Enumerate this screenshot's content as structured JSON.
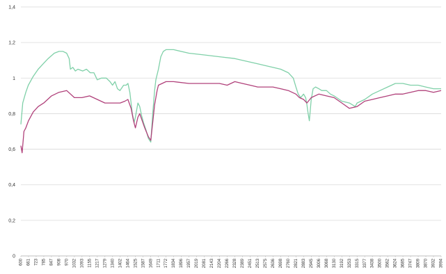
{
  "chart_data": {
    "type": "line",
    "title": "",
    "xlabel": "",
    "ylabel": "",
    "ylim": [
      0,
      1.4
    ],
    "yticks": [
      "0",
      "0,2",
      "0,4",
      "0,6",
      "0,8",
      "1",
      "1,2",
      "1,4"
    ],
    "grid": true,
    "legend": "none",
    "x_categories": [
      "600",
      "661",
      "723",
      "785",
      "847",
      "908",
      "970",
      "1032",
      "1093",
      "1155",
      "1217",
      "1279",
      "1340",
      "1402",
      "1464",
      "1525",
      "1587",
      "1649",
      "1711",
      "1772",
      "1834",
      "1896",
      "1957",
      "2019",
      "2081",
      "2143",
      "2204",
      "2266",
      "2328",
      "2389",
      "2451",
      "2513",
      "2575",
      "2636",
      "2698",
      "2760",
      "2821",
      "2883",
      "2945",
      "3006",
      "3068",
      "3130",
      "3192",
      "3253",
      "3315",
      "3377",
      "3438",
      "3500",
      "3562",
      "3624",
      "3685",
      "3747",
      "3809",
      "3870",
      "3932",
      "3994"
    ],
    "series": [
      {
        "color": "#7fd0a8",
        "points": [
          [
            600,
            0.74
          ],
          [
            615,
            0.86
          ],
          [
            640,
            0.92
          ],
          [
            660,
            0.96
          ],
          [
            700,
            1.01
          ],
          [
            740,
            1.05
          ],
          [
            780,
            1.08
          ],
          [
            820,
            1.11
          ],
          [
            870,
            1.14
          ],
          [
            908,
            1.15
          ],
          [
            940,
            1.15
          ],
          [
            970,
            1.14
          ],
          [
            990,
            1.11
          ],
          [
            1000,
            1.05
          ],
          [
            1020,
            1.06
          ],
          [
            1040,
            1.04
          ],
          [
            1060,
            1.05
          ],
          [
            1100,
            1.04
          ],
          [
            1130,
            1.05
          ],
          [
            1160,
            1.03
          ],
          [
            1190,
            1.03
          ],
          [
            1217,
            0.99
          ],
          [
            1250,
            1.0
          ],
          [
            1290,
            1.0
          ],
          [
            1320,
            0.98
          ],
          [
            1340,
            0.96
          ],
          [
            1360,
            0.98
          ],
          [
            1380,
            0.94
          ],
          [
            1400,
            0.93
          ],
          [
            1430,
            0.96
          ],
          [
            1450,
            0.96
          ],
          [
            1465,
            0.97
          ],
          [
            1480,
            0.92
          ],
          [
            1500,
            0.8
          ],
          [
            1515,
            0.75
          ],
          [
            1525,
            0.78
          ],
          [
            1545,
            0.86
          ],
          [
            1560,
            0.84
          ],
          [
            1575,
            0.79
          ],
          [
            1590,
            0.75
          ],
          [
            1610,
            0.71
          ],
          [
            1630,
            0.66
          ],
          [
            1649,
            0.64
          ],
          [
            1665,
            0.8
          ],
          [
            1680,
            0.93
          ],
          [
            1690,
            0.99
          ],
          [
            1711,
            1.05
          ],
          [
            1730,
            1.12
          ],
          [
            1750,
            1.15
          ],
          [
            1772,
            1.16
          ],
          [
            1834,
            1.16
          ],
          [
            1957,
            1.14
          ],
          [
            2081,
            1.13
          ],
          [
            2204,
            1.12
          ],
          [
            2328,
            1.11
          ],
          [
            2389,
            1.1
          ],
          [
            2451,
            1.09
          ],
          [
            2513,
            1.08
          ],
          [
            2575,
            1.07
          ],
          [
            2636,
            1.06
          ],
          [
            2698,
            1.05
          ],
          [
            2760,
            1.03
          ],
          [
            2800,
            1.0
          ],
          [
            2821,
            0.95
          ],
          [
            2840,
            0.91
          ],
          [
            2860,
            0.89
          ],
          [
            2883,
            0.91
          ],
          [
            2900,
            0.89
          ],
          [
            2910,
            0.85
          ],
          [
            2920,
            0.8
          ],
          [
            2930,
            0.76
          ],
          [
            2945,
            0.88
          ],
          [
            2960,
            0.94
          ],
          [
            2980,
            0.95
          ],
          [
            3006,
            0.94
          ],
          [
            3030,
            0.93
          ],
          [
            3068,
            0.93
          ],
          [
            3100,
            0.91
          ],
          [
            3130,
            0.9
          ],
          [
            3192,
            0.87
          ],
          [
            3253,
            0.86
          ],
          [
            3300,
            0.84
          ],
          [
            3315,
            0.86
          ],
          [
            3377,
            0.88
          ],
          [
            3438,
            0.91
          ],
          [
            3500,
            0.93
          ],
          [
            3562,
            0.95
          ],
          [
            3624,
            0.97
          ],
          [
            3685,
            0.97
          ],
          [
            3747,
            0.96
          ],
          [
            3809,
            0.96
          ],
          [
            3870,
            0.95
          ],
          [
            3932,
            0.94
          ],
          [
            3994,
            0.94
          ]
        ]
      },
      {
        "color": "#b0407a",
        "points": [
          [
            600,
            0.62
          ],
          [
            610,
            0.58
          ],
          [
            625,
            0.7
          ],
          [
            640,
            0.72
          ],
          [
            661,
            0.76
          ],
          [
            700,
            0.81
          ],
          [
            740,
            0.84
          ],
          [
            785,
            0.86
          ],
          [
            847,
            0.9
          ],
          [
            908,
            0.92
          ],
          [
            970,
            0.93
          ],
          [
            1032,
            0.89
          ],
          [
            1093,
            0.89
          ],
          [
            1155,
            0.9
          ],
          [
            1217,
            0.88
          ],
          [
            1279,
            0.86
          ],
          [
            1340,
            0.86
          ],
          [
            1402,
            0.86
          ],
          [
            1440,
            0.87
          ],
          [
            1464,
            0.88
          ],
          [
            1490,
            0.83
          ],
          [
            1510,
            0.76
          ],
          [
            1525,
            0.72
          ],
          [
            1545,
            0.78
          ],
          [
            1560,
            0.8
          ],
          [
            1580,
            0.76
          ],
          [
            1600,
            0.72
          ],
          [
            1630,
            0.67
          ],
          [
            1649,
            0.65
          ],
          [
            1665,
            0.75
          ],
          [
            1680,
            0.85
          ],
          [
            1700,
            0.93
          ],
          [
            1711,
            0.96
          ],
          [
            1772,
            0.98
          ],
          [
            1834,
            0.98
          ],
          [
            1957,
            0.97
          ],
          [
            2081,
            0.97
          ],
          [
            2204,
            0.97
          ],
          [
            2266,
            0.96
          ],
          [
            2328,
            0.98
          ],
          [
            2389,
            0.97
          ],
          [
            2451,
            0.96
          ],
          [
            2513,
            0.95
          ],
          [
            2575,
            0.95
          ],
          [
            2636,
            0.95
          ],
          [
            2698,
            0.94
          ],
          [
            2760,
            0.93
          ],
          [
            2821,
            0.91
          ],
          [
            2850,
            0.89
          ],
          [
            2883,
            0.88
          ],
          [
            2910,
            0.86
          ],
          [
            2945,
            0.89
          ],
          [
            3006,
            0.91
          ],
          [
            3068,
            0.9
          ],
          [
            3130,
            0.89
          ],
          [
            3192,
            0.86
          ],
          [
            3253,
            0.83
          ],
          [
            3315,
            0.84
          ],
          [
            3377,
            0.87
          ],
          [
            3438,
            0.88
          ],
          [
            3500,
            0.89
          ],
          [
            3562,
            0.9
          ],
          [
            3624,
            0.91
          ],
          [
            3685,
            0.91
          ],
          [
            3747,
            0.92
          ],
          [
            3809,
            0.93
          ],
          [
            3870,
            0.93
          ],
          [
            3932,
            0.92
          ],
          [
            3994,
            0.93
          ]
        ]
      }
    ]
  }
}
